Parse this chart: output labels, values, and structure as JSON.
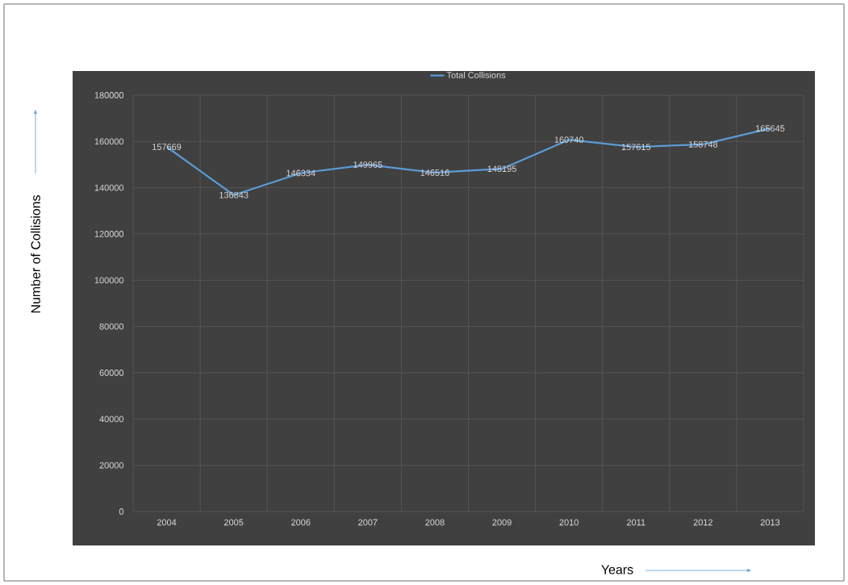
{
  "chart_data": {
    "type": "line",
    "xlabel": "Years",
    "ylabel": "Number of Collisions",
    "categories": [
      "2004",
      "2005",
      "2006",
      "2007",
      "2008",
      "2009",
      "2010",
      "2011",
      "2012",
      "2013"
    ],
    "series": [
      {
        "name": "Total Collisions",
        "color": "#5b9bd5",
        "values": [
          157669,
          136843,
          146334,
          149965,
          146516,
          148195,
          160740,
          157615,
          158748,
          165645
        ]
      }
    ],
    "ylim": [
      0,
      180000
    ],
    "yticks": [
      0,
      20000,
      40000,
      60000,
      80000,
      100000,
      120000,
      140000,
      160000,
      180000
    ],
    "grid": true,
    "legend": "top",
    "data_labels": true,
    "marker": "none",
    "line_style": "solid"
  }
}
